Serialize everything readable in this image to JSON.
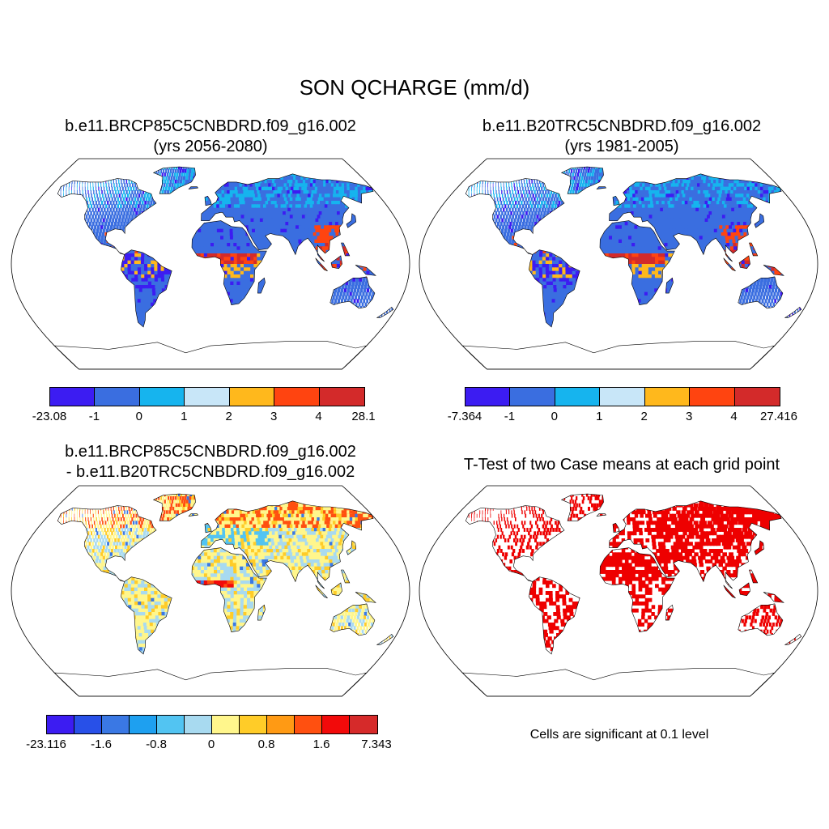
{
  "title": "SON QCHARGE (mm/d)",
  "panels": [
    {
      "title_line1": "b.e11.BRCP85C5CNBDRD.f09_g16.002",
      "title_line2": "(yrs 2056-2080)",
      "colorbar": {
        "colors": [
          "#3c1cf2",
          "#3a6ee0",
          "#16b4ee",
          "#c8e6f8",
          "#ffb81c",
          "#ff4410",
          "#d32a2a"
        ],
        "labels": [
          "-23.08",
          "-1",
          "0",
          "1",
          "2",
          "3",
          "4",
          "28.1"
        ]
      }
    },
    {
      "title_line1": "b.e11.B20TRC5CNBDRD.f09_g16.002",
      "title_line2": "(yrs 1981-2005)",
      "colorbar": {
        "colors": [
          "#3c1cf2",
          "#3a6ee0",
          "#16b4ee",
          "#c8e6f8",
          "#ffb81c",
          "#ff4410",
          "#d32a2a"
        ],
        "labels": [
          "-7.364",
          "-1",
          "0",
          "1",
          "2",
          "3",
          "4",
          "27.416"
        ]
      }
    },
    {
      "title_line1": "b.e11.BRCP85C5CNBDRD.f09_g16.002",
      "title_line2": "- b.e11.B20TRC5CNBDRD.f09_g16.002",
      "colorbar": {
        "colors": [
          "#3c1cf2",
          "#2850e8",
          "#3a78e4",
          "#1ea0f0",
          "#52c4f2",
          "#a8daf0",
          "#fff68c",
          "#ffcc28",
          "#ff9a14",
          "#ff5010",
          "#f20a0a",
          "#d62a2a"
        ],
        "labels": [
          "-23.116",
          "-1.6",
          "-0.8",
          "0",
          "0.8",
          "1.6",
          "7.343"
        ]
      }
    },
    {
      "title_line1": "T-Test of two Case means at each grid point",
      "note": "Cells are significant at 0.1 level",
      "significance_color": "#ee0000"
    }
  ]
}
